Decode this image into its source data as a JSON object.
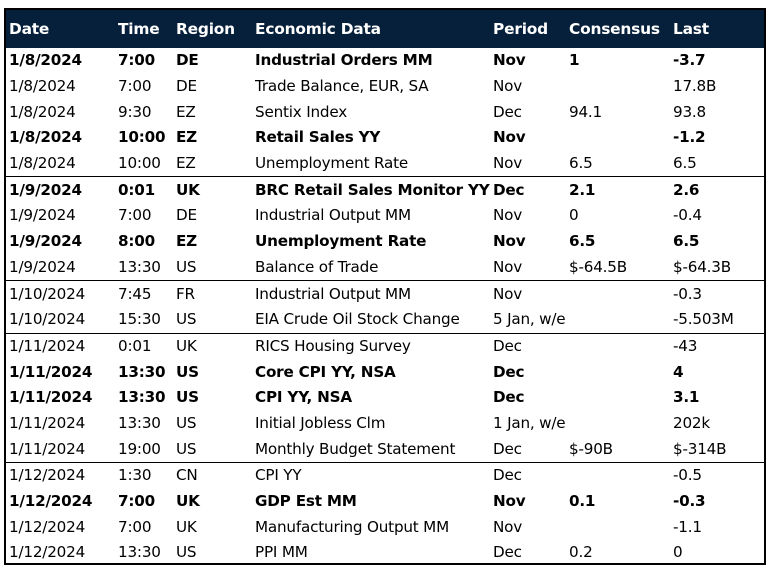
{
  "header": {
    "columns": [
      "Date",
      "Time",
      "Region",
      "Economic Data",
      "Period",
      "Consensus",
      "Last"
    ]
  },
  "colors": {
    "header_background": "#06203b",
    "header_text": "#ffffff",
    "body_text": "#000000",
    "border": "#000000"
  },
  "rows": [
    {
      "date": "1/8/2024",
      "time": "7:00",
      "region": "DE",
      "event": "Industrial Orders MM",
      "period": "Nov",
      "consensus": "1",
      "last": "-3.7",
      "bold": true,
      "group_end": false
    },
    {
      "date": "1/8/2024",
      "time": "7:00",
      "region": "DE",
      "event": "Trade Balance, EUR, SA",
      "period": "Nov",
      "consensus": "",
      "last": "17.8B",
      "bold": false,
      "group_end": false
    },
    {
      "date": "1/8/2024",
      "time": "9:30",
      "region": "EZ",
      "event": "Sentix Index",
      "period": "Dec",
      "consensus": "94.1",
      "last": "93.8",
      "bold": false,
      "group_end": false
    },
    {
      "date": "1/8/2024",
      "time": "10:00",
      "region": "EZ",
      "event": "Retail Sales YY",
      "period": "Nov",
      "consensus": "",
      "last": "-1.2",
      "bold": true,
      "group_end": false
    },
    {
      "date": "1/8/2024",
      "time": "10:00",
      "region": "EZ",
      "event": "Unemployment Rate",
      "period": "Nov",
      "consensus": "6.5",
      "last": "6.5",
      "bold": false,
      "group_end": true
    },
    {
      "date": "1/9/2024",
      "time": "0:01",
      "region": "UK",
      "event": "BRC Retail Sales Monitor YY",
      "period": "Dec",
      "consensus": "2.1",
      "last": "2.6",
      "bold": true,
      "group_end": false
    },
    {
      "date": "1/9/2024",
      "time": "7:00",
      "region": "DE",
      "event": "Industrial Output MM",
      "period": "Nov",
      "consensus": "0",
      "last": "-0.4",
      "bold": false,
      "group_end": false
    },
    {
      "date": "1/9/2024",
      "time": "8:00",
      "region": "EZ",
      "event": "Unemployment Rate",
      "period": "Nov",
      "consensus": "6.5",
      "last": "6.5",
      "bold": true,
      "group_end": false
    },
    {
      "date": "1/9/2024",
      "time": "13:30",
      "region": "US",
      "event": "Balance of Trade",
      "period": "Nov",
      "consensus": "$-64.5B",
      "last": "$-64.3B",
      "bold": false,
      "group_end": true
    },
    {
      "date": "1/10/2024",
      "time": "7:45",
      "region": "FR",
      "event": "Industrial Output MM",
      "period": "Nov",
      "consensus": "",
      "last": "-0.3",
      "bold": false,
      "group_end": false
    },
    {
      "date": "1/10/2024",
      "time": "15:30",
      "region": "US",
      "event": "EIA Crude Oil Stock Change",
      "period": "5 Jan, w/e",
      "consensus": "",
      "last": "-5.503M",
      "bold": false,
      "group_end": true
    },
    {
      "date": "1/11/2024",
      "time": "0:01",
      "region": "UK",
      "event": "RICS Housing Survey",
      "period": "Dec",
      "consensus": "",
      "last": "-43",
      "bold": false,
      "group_end": false
    },
    {
      "date": "1/11/2024",
      "time": "13:30",
      "region": "US",
      "event": "Core CPI YY, NSA",
      "period": "Dec",
      "consensus": "",
      "last": "4",
      "bold": true,
      "group_end": false
    },
    {
      "date": "1/11/2024",
      "time": "13:30",
      "region": "US",
      "event": "CPI YY, NSA",
      "period": "Dec",
      "consensus": "",
      "last": "3.1",
      "bold": true,
      "group_end": false
    },
    {
      "date": "1/11/2024",
      "time": "13:30",
      "region": "US",
      "event": "Initial Jobless Clm",
      "period": "1 Jan, w/e",
      "consensus": "",
      "last": "202k",
      "bold": false,
      "group_end": false
    },
    {
      "date": "1/11/2024",
      "time": "19:00",
      "region": "US",
      "event": "Monthly Budget Statement",
      "period": "Dec",
      "consensus": "$-90B",
      "last": "$-314B",
      "bold": false,
      "group_end": true
    },
    {
      "date": "1/12/2024",
      "time": "1:30",
      "region": "CN",
      "event": "CPI YY",
      "period": "Dec",
      "consensus": "",
      "last": "-0.5",
      "bold": false,
      "group_end": false
    },
    {
      "date": "1/12/2024",
      "time": "7:00",
      "region": "UK",
      "event": "GDP Est MM",
      "period": "Nov",
      "consensus": "0.1",
      "last": "-0.3",
      "bold": true,
      "group_end": false
    },
    {
      "date": "1/12/2024",
      "time": "7:00",
      "region": "UK",
      "event": "Manufacturing Output MM",
      "period": "Nov",
      "consensus": "",
      "last": "-1.1",
      "bold": false,
      "group_end": false
    },
    {
      "date": "1/12/2024",
      "time": "13:30",
      "region": "US",
      "event": "PPI MM",
      "period": "Dec",
      "consensus": "0.2",
      "last": "0",
      "bold": false,
      "group_end": false
    }
  ]
}
